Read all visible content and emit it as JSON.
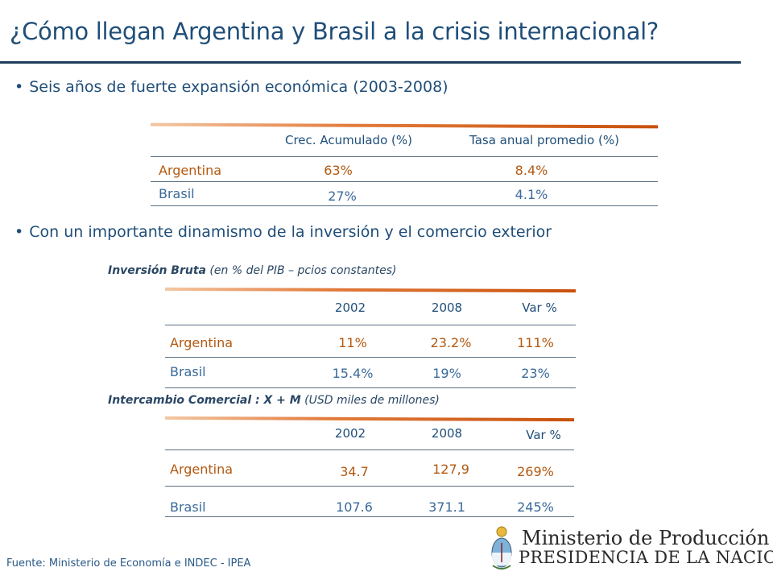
{
  "title": "¿Cómo llegan Argentina y Brasil a la crisis internacional?",
  "bullets": [
    "Seis años de fuerte expansión económica (2003-2008)",
    "Con un importante dinamismo de la inversión y el comercio exterior"
  ],
  "growth_table": {
    "headers": [
      "Crec. Acumulado (%)",
      "Tasa anual promedio (%)"
    ],
    "rows": [
      {
        "country": "Argentina",
        "values": [
          "63%",
          "8.4%"
        ]
      },
      {
        "country": "Brasil",
        "values": [
          "27%",
          "4.1%"
        ]
      }
    ]
  },
  "investment": {
    "subtitle_bold": "Inversión Bruta",
    "subtitle_rest": " (en % del PIB – pcios constantes)",
    "headers": [
      "2002",
      "2008",
      "Var %"
    ],
    "rows": [
      {
        "country": "Argentina",
        "values": [
          "11%",
          "23.2%",
          "111%"
        ]
      },
      {
        "country": "Brasil",
        "values": [
          "15.4%",
          "19%",
          "23%"
        ]
      }
    ]
  },
  "trade": {
    "subtitle_bold": "Intercambio Comercial : X + M",
    "subtitle_rest": " (USD miles de millones)",
    "headers": [
      "2002",
      "2008",
      "Var %"
    ],
    "rows": [
      {
        "country": "Argentina",
        "values": [
          "34.7",
          "127,9",
          "269%"
        ]
      },
      {
        "country": "Brasil",
        "values": [
          "107.6",
          "371.1",
          "245%"
        ]
      }
    ]
  },
  "source": "Fuente: Ministerio de Economía e INDEC - IPEA",
  "logo": {
    "line1": "Ministerio de Producción",
    "line2": "PRESIDENCIA DE LA NACION"
  },
  "colors": {
    "title": "#1f4e79",
    "argentina": "#b3580f",
    "brasil": "#3a6a9a",
    "accent_rule": "#c8510c"
  }
}
